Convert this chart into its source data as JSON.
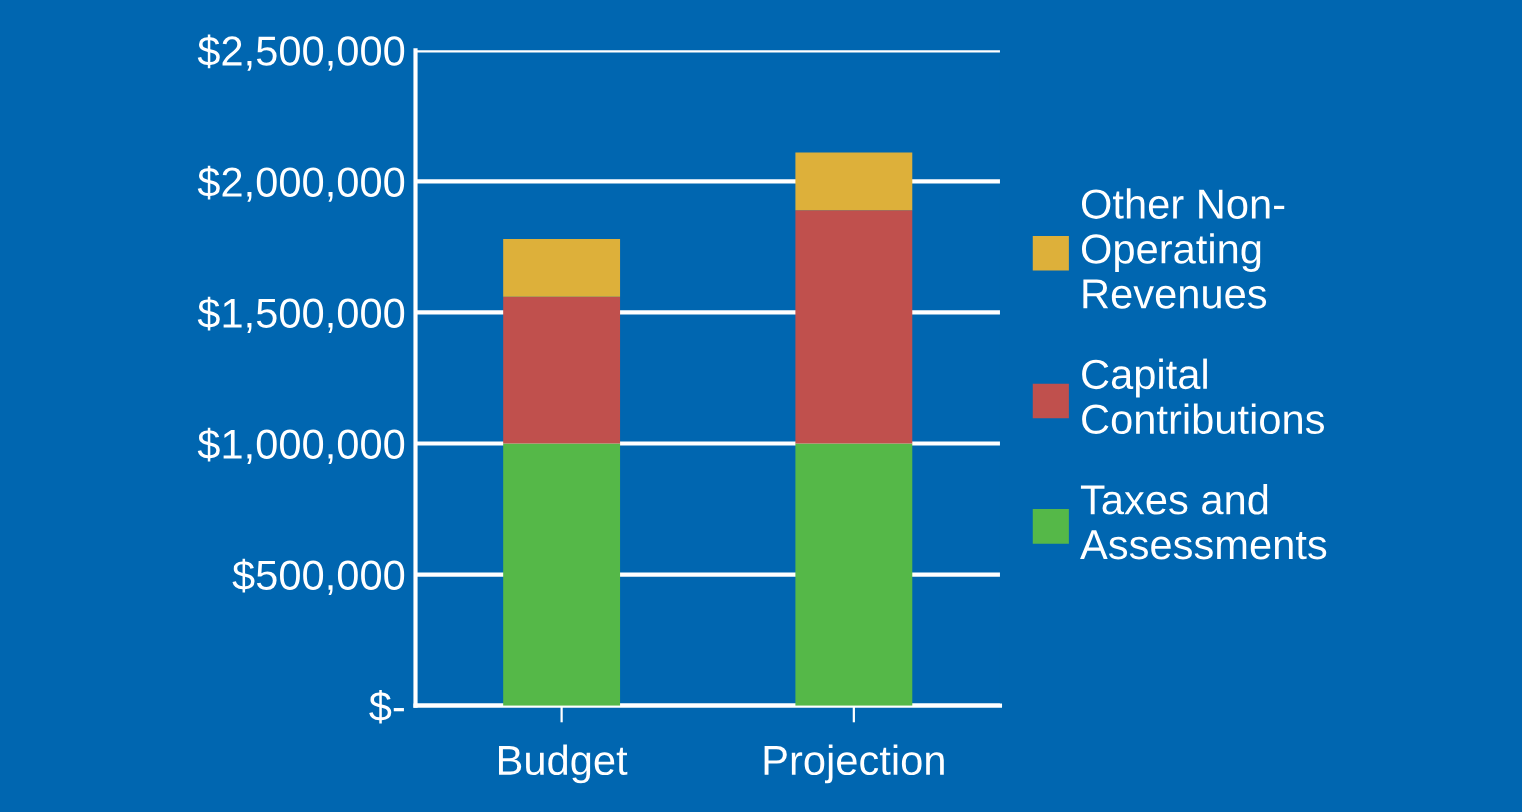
{
  "chart_data": {
    "type": "bar",
    "stacked": true,
    "categories": [
      "Budget",
      "Projection"
    ],
    "series": [
      {
        "name": "Taxes and\nAssessments",
        "color": "#55b848",
        "values": [
          1000000,
          1000000
        ]
      },
      {
        "name": "Capital\nContributions",
        "color": "#c0504d",
        "values": [
          560000,
          890000
        ]
      },
      {
        "name": "Other Non-\nOperating\nRevenues",
        "color": "#ddb03a",
        "values": [
          220000,
          220000
        ]
      }
    ],
    "ylim": [
      0,
      2500000
    ],
    "yticks": [
      {
        "value": 0,
        "label": "$-"
      },
      {
        "value": 500000,
        "label": "$500,000"
      },
      {
        "value": 1000000,
        "label": "$1,000,000"
      },
      {
        "value": 1500000,
        "label": "$1,500,000"
      },
      {
        "value": 2000000,
        "label": "$2,000,000"
      },
      {
        "value": 2500000,
        "label": "$2,500,000"
      }
    ],
    "grid": "y",
    "legend": "right"
  }
}
